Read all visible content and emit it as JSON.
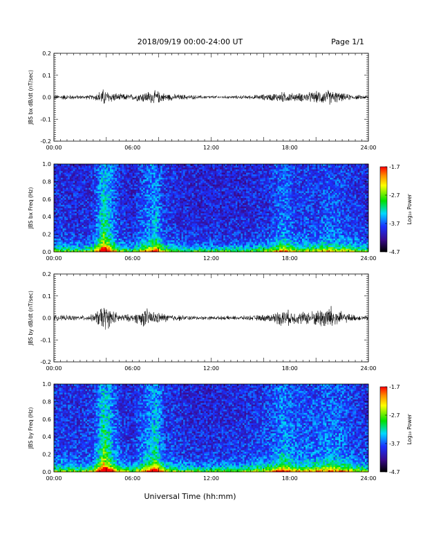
{
  "header": {
    "title": "2018/09/19  00:00-24:00 UT",
    "page": "Page 1/1"
  },
  "x_axis": {
    "label": "Universal Time (hh:mm)",
    "tick_labels": [
      "00:00",
      "06:00",
      "12:00",
      "18:00",
      "24:00"
    ]
  },
  "colorbar": {
    "label": "Log₁₀ Power",
    "tick_labels": [
      "-1.7",
      "-2.7",
      "-3.7",
      "-4.7"
    ],
    "range": [
      -4.7,
      -1.7
    ]
  },
  "chart_data": [
    {
      "type": "line",
      "ylabel": "JBS bx dB/dt (nT/sec)",
      "xlim_hours": [
        0,
        24
      ],
      "ylim": [
        -0.2,
        0.2
      ],
      "y_tick_labels": [
        "0.2",
        "0.1",
        "0.0",
        "-0.1",
        "-0.2"
      ],
      "series": [
        {
          "x_hours": [
            0,
            1,
            2,
            3,
            3.8,
            4.2,
            5,
            6,
            7,
            7.8,
            8.5,
            9.5,
            11,
            13,
            15,
            16.5,
            17.5,
            18.5,
            20,
            21,
            22,
            23,
            24
          ],
          "amplitude": [
            0.012,
            0.014,
            0.01,
            0.012,
            0.045,
            0.03,
            0.018,
            0.016,
            0.03,
            0.035,
            0.02,
            0.015,
            0.01,
            0.008,
            0.01,
            0.018,
            0.028,
            0.02,
            0.03,
            0.04,
            0.02,
            0.012,
            0.01
          ]
        }
      ]
    },
    {
      "type": "heatmap",
      "ylabel": "JBS bx Freq (Hz)",
      "xlim_hours": [
        0,
        24
      ],
      "ylim": [
        0.0,
        1.0
      ],
      "y_tick_labels": [
        "1.0",
        "0.8",
        "0.6",
        "0.4",
        "0.2",
        "0.0"
      ],
      "zlim": [
        -4.7,
        -1.7
      ],
      "activity": {
        "x_hours": [
          0,
          1,
          2,
          3,
          3.8,
          4.2,
          5,
          6,
          7,
          7.8,
          8.5,
          9.5,
          11,
          13,
          15,
          16.5,
          17.5,
          18.5,
          20,
          21,
          22,
          23,
          24
        ],
        "level": [
          0.3,
          0.25,
          0.22,
          0.3,
          0.85,
          0.7,
          0.3,
          0.2,
          0.5,
          0.65,
          0.3,
          0.25,
          0.2,
          0.2,
          0.22,
          0.3,
          0.55,
          0.35,
          0.35,
          0.45,
          0.4,
          0.3,
          0.25
        ]
      }
    },
    {
      "type": "line",
      "ylabel": "JBS by dB/dt (nT/sec)",
      "xlim_hours": [
        0,
        24
      ],
      "ylim": [
        -0.2,
        0.2
      ],
      "y_tick_labels": [
        "0.2",
        "0.1",
        "0.0",
        "-0.1",
        "-0.2"
      ],
      "series": [
        {
          "x_hours": [
            0,
            1,
            2,
            3,
            3.8,
            4.2,
            5,
            6,
            7,
            7.8,
            8.5,
            9.5,
            11,
            13,
            15,
            16.5,
            17.5,
            18.5,
            20,
            21,
            22,
            23,
            24
          ],
          "amplitude": [
            0.015,
            0.014,
            0.012,
            0.018,
            0.07,
            0.05,
            0.02,
            0.018,
            0.05,
            0.03,
            0.022,
            0.015,
            0.01,
            0.01,
            0.012,
            0.02,
            0.045,
            0.03,
            0.04,
            0.07,
            0.03,
            0.015,
            0.012
          ]
        }
      ]
    },
    {
      "type": "heatmap",
      "ylabel": "JBS by Freq (Hz)",
      "xlim_hours": [
        0,
        24
      ],
      "ylim": [
        0.0,
        1.0
      ],
      "y_tick_labels": [
        "1.0",
        "0.8",
        "0.6",
        "0.4",
        "0.2",
        "0.0"
      ],
      "zlim": [
        -4.7,
        -1.7
      ],
      "activity": {
        "x_hours": [
          0,
          1,
          2,
          3,
          3.8,
          4.2,
          5,
          6,
          7,
          7.8,
          8.5,
          9.5,
          11,
          13,
          15,
          16.5,
          17.5,
          18.5,
          20,
          21,
          22,
          23,
          24
        ],
        "level": [
          0.35,
          0.3,
          0.28,
          0.35,
          0.9,
          0.75,
          0.35,
          0.25,
          0.55,
          0.75,
          0.35,
          0.28,
          0.22,
          0.25,
          0.3,
          0.4,
          0.65,
          0.45,
          0.45,
          0.55,
          0.5,
          0.35,
          0.3
        ]
      }
    }
  ]
}
